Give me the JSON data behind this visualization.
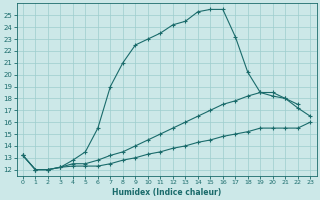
{
  "xlabel": "Humidex (Indice chaleur)",
  "ylabel": "",
  "bg_color": "#cce8e8",
  "grid_color": "#9ecece",
  "line_color": "#1a6b6b",
  "xlim": [
    -0.5,
    23.5
  ],
  "ylim": [
    11.5,
    26.0
  ],
  "xticks": [
    0,
    1,
    2,
    3,
    4,
    5,
    6,
    7,
    8,
    9,
    10,
    11,
    12,
    13,
    14,
    15,
    16,
    17,
    18,
    19,
    20,
    21,
    22,
    23
  ],
  "yticks": [
    12,
    13,
    14,
    15,
    16,
    17,
    18,
    19,
    20,
    21,
    22,
    23,
    24,
    25
  ],
  "series1_x": [
    0,
    1,
    2,
    3,
    4,
    5,
    6,
    7,
    8,
    9,
    10,
    11,
    12,
    13,
    14,
    15,
    16,
    17,
    18,
    19,
    20,
    21,
    22
  ],
  "series1_y": [
    13.2,
    12.0,
    12.0,
    12.2,
    12.8,
    13.5,
    15.5,
    19.0,
    21.0,
    22.5,
    23.0,
    23.5,
    24.2,
    24.5,
    25.3,
    25.5,
    25.5,
    23.2,
    20.2,
    18.5,
    18.2,
    18.0,
    17.5
  ],
  "series2_x": [
    0,
    1,
    2,
    3,
    4,
    5,
    6,
    7,
    8,
    9,
    10,
    11,
    12,
    13,
    14,
    15,
    16,
    17,
    18,
    19,
    20,
    21,
    22,
    23
  ],
  "series2_y": [
    13.2,
    12.0,
    12.0,
    12.2,
    12.5,
    12.5,
    12.8,
    13.2,
    13.5,
    14.0,
    14.5,
    15.0,
    15.5,
    16.0,
    16.5,
    17.0,
    17.5,
    17.8,
    18.2,
    18.5,
    18.5,
    18.0,
    17.2,
    16.5
  ],
  "series3_x": [
    0,
    1,
    2,
    3,
    4,
    5,
    6,
    7,
    8,
    9,
    10,
    11,
    12,
    13,
    14,
    15,
    16,
    17,
    18,
    19,
    20,
    21,
    22,
    23
  ],
  "series3_y": [
    13.2,
    12.0,
    12.0,
    12.2,
    12.3,
    12.3,
    12.3,
    12.5,
    12.8,
    13.0,
    13.3,
    13.5,
    13.8,
    14.0,
    14.3,
    14.5,
    14.8,
    15.0,
    15.2,
    15.5,
    15.5,
    15.5,
    15.5,
    16.0
  ]
}
